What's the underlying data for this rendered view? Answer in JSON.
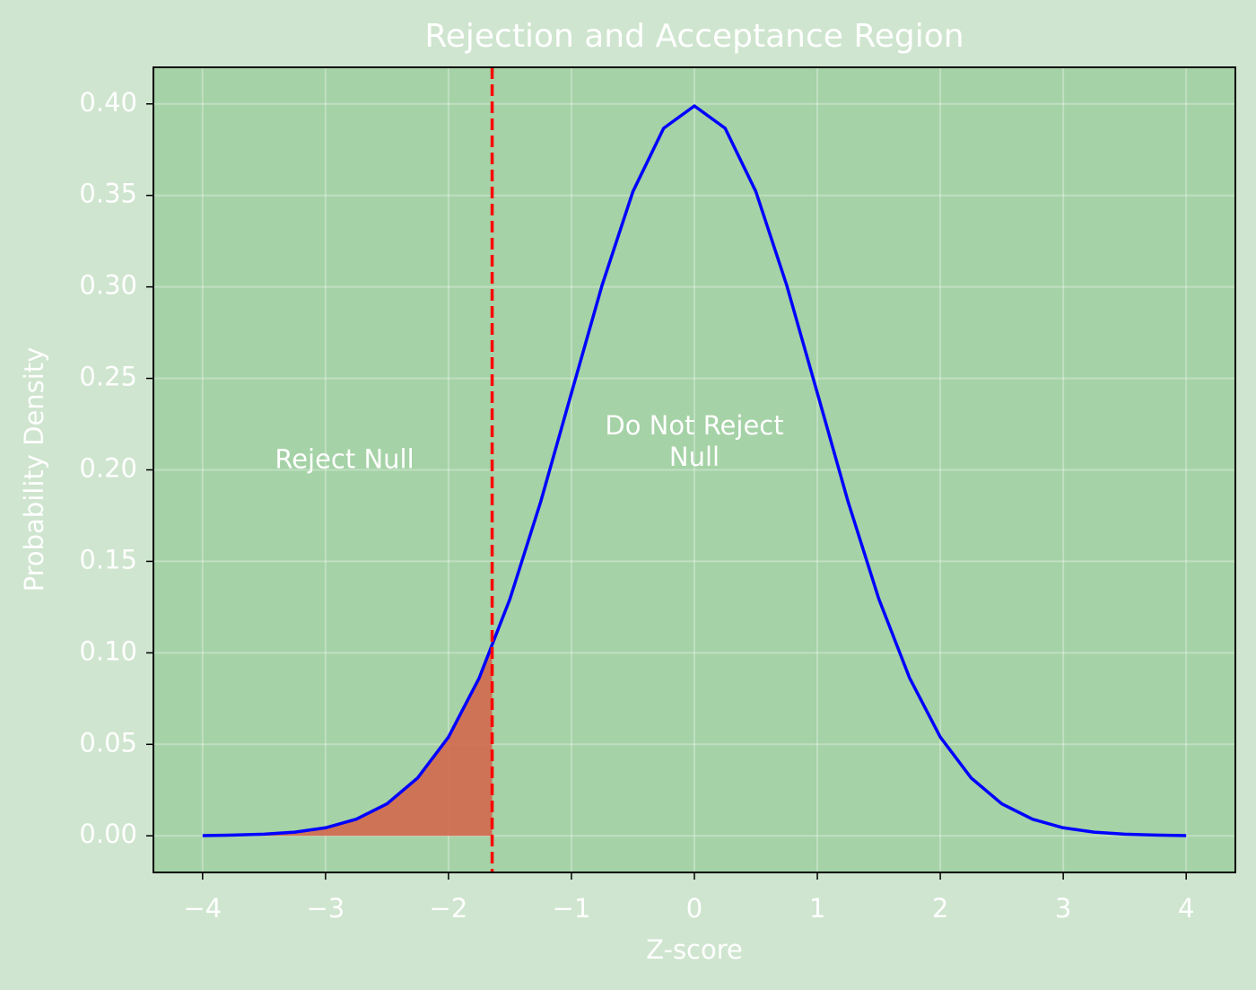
{
  "chart_data": {
    "type": "line",
    "title": "Rejection and Acceptance Region",
    "x_label": "Z-score",
    "y_label": "Probability Density",
    "x": [
      -4,
      -3.75,
      -3.5,
      -3.25,
      -3,
      -2.75,
      -2.5,
      -2.25,
      -2,
      -1.75,
      -1.5,
      -1.25,
      -1,
      -0.75,
      -0.5,
      -0.25,
      0,
      0.25,
      0.5,
      0.75,
      1,
      1.25,
      1.5,
      1.75,
      2,
      2.25,
      2.5,
      2.75,
      3,
      3.25,
      3.5,
      3.75,
      4
    ],
    "values": [
      0.0001,
      0.0004,
      0.0009,
      0.002,
      0.0044,
      0.0091,
      0.0175,
      0.0317,
      0.054,
      0.0863,
      0.1295,
      0.1826,
      0.242,
      0.3011,
      0.3521,
      0.3867,
      0.3989,
      0.3867,
      0.3521,
      0.3011,
      0.242,
      0.1826,
      0.1295,
      0.0863,
      0.054,
      0.0317,
      0.0175,
      0.0091,
      0.0044,
      0.002,
      0.0009,
      0.0004,
      0.0001
    ],
    "color": "#0000ff",
    "shade": {
      "x": [
        -4,
        -3.75,
        -3.5,
        -3.25,
        -3,
        -2.75,
        -2.5,
        -2.25,
        -2,
        -1.75,
        -1.645
      ],
      "values": [
        0.0001,
        0.0004,
        0.0009,
        0.002,
        0.0044,
        0.0091,
        0.0175,
        0.0317,
        0.054,
        0.0863,
        0.1031
      ],
      "color": "#d4684f"
    },
    "critical_value": -1.645,
    "critical_color": "#ff0000",
    "annotations": [
      "Reject Null",
      "Do Not Reject\nNull"
    ],
    "xlim": [
      -4.4,
      4.4
    ],
    "ylim": [
      -0.02,
      0.42
    ],
    "xticks": [
      {
        "value": -4,
        "label": "−4"
      },
      {
        "value": -3,
        "label": "−3"
      },
      {
        "value": -2,
        "label": "−2"
      },
      {
        "value": -1,
        "label": "−1"
      },
      0,
      1,
      2,
      3,
      4
    ],
    "yticks": [
      {
        "value": 0,
        "label": "0.00"
      },
      {
        "value": 0.05,
        "label": "0.05"
      },
      {
        "value": 0.1,
        "label": "0.10"
      },
      {
        "value": 0.15,
        "label": "0.15"
      },
      {
        "value": 0.2,
        "label": "0.20"
      },
      {
        "value": 0.25,
        "label": "0.25"
      },
      {
        "value": 0.3,
        "label": "0.30"
      },
      {
        "value": 0.35,
        "label": "0.35"
      },
      {
        "value": 0.4,
        "label": "0.40"
      }
    ],
    "grid": true
  }
}
